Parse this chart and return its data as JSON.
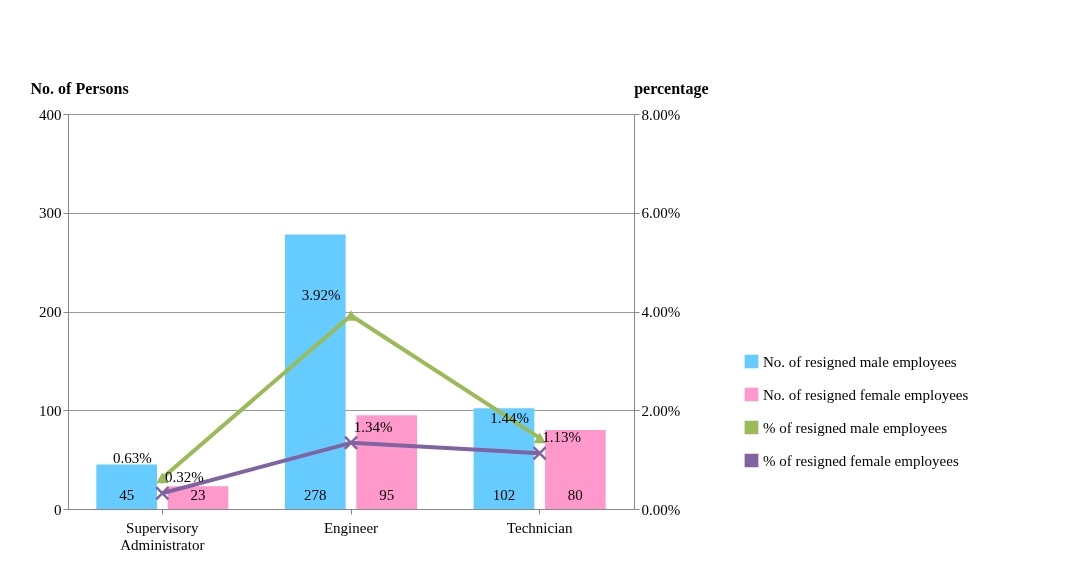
{
  "chart_data": {
    "type": "bar",
    "categories": [
      "Supervisory Administrator",
      "Engineer",
      "Technician"
    ],
    "ylabel": "No. of  Persons",
    "y2label": "percentage",
    "ylim": [
      0,
      400
    ],
    "yticks": [
      0,
      100,
      200,
      300,
      400
    ],
    "y2lim": [
      0,
      8
    ],
    "y2ticks": [
      {
        "value": 0,
        "label": "0.00%"
      },
      {
        "value": 2,
        "label": "2.00%"
      },
      {
        "value": 4,
        "label": "4.00%"
      },
      {
        "value": 6,
        "label": "6.00%"
      },
      {
        "value": 8,
        "label": "8.00%"
      }
    ],
    "grid": "y",
    "legend": "right",
    "series": [
      {
        "name": "No. of resigned male employees",
        "color": "#66ccff",
        "values": [
          45,
          278,
          102
        ],
        "value_labels": [
          "45",
          "278",
          "102"
        ]
      },
      {
        "name": "No. of resigned female employees",
        "color": "#ff99cc",
        "values": [
          23,
          95,
          80
        ],
        "value_labels": [
          "23",
          "95",
          "80"
        ]
      },
      {
        "name": "% of resigned male employees",
        "type": "line",
        "axis": "y2",
        "marker": "triangle",
        "color": "#9bbb59",
        "values": [
          0.63,
          3.92,
          1.44
        ],
        "value_labels": [
          "0.63%",
          "3.92%",
          "1.44%"
        ]
      },
      {
        "name": "% of resigned female employees",
        "type": "line",
        "axis": "y2",
        "marker": "cross",
        "color": "#8064a2",
        "values": [
          0.32,
          1.34,
          1.13
        ],
        "value_labels": [
          "0.32%",
          "1.34%",
          "1.13%"
        ]
      }
    ]
  }
}
